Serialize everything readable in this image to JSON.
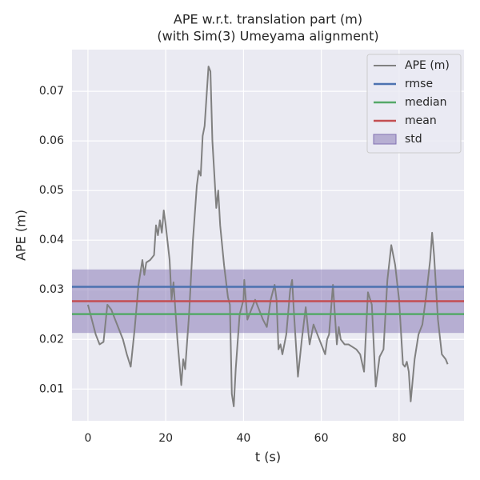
{
  "chart_data": {
    "type": "line",
    "title": "APE w.r.t. translation part (m)",
    "subtitle": "(with Sim(3) Umeyama alignment)",
    "x_label": "t (s)",
    "y_label": "APE (m)",
    "xlim": [
      -4.1,
      96.7
    ],
    "ylim": [
      0.0036,
      0.0784
    ],
    "xticks": [
      0,
      20,
      40,
      60,
      80
    ],
    "yticks": [
      0.01,
      0.02,
      0.03,
      0.04,
      0.05,
      0.06,
      0.07
    ],
    "grid": true,
    "legend": "upper right",
    "series": [
      {
        "name": "APE (m)",
        "color": "#808080",
        "x": [
          0,
          1,
          2,
          3,
          4,
          5,
          6,
          7,
          8,
          9,
          10,
          11,
          12,
          13,
          14,
          14.5,
          15,
          16,
          17,
          17.5,
          18,
          18.5,
          19,
          19.5,
          20,
          21,
          21.5,
          22,
          23,
          24,
          24.5,
          25,
          26,
          27,
          28,
          28.5,
          29,
          29.5,
          30,
          31,
          31.5,
          32,
          33,
          33.5,
          34,
          35,
          36,
          36.5,
          37,
          37.5,
          38,
          39,
          40,
          40.2,
          41,
          42,
          43,
          44,
          45,
          46,
          47,
          48,
          48.5,
          49,
          49.5,
          50,
          51,
          52,
          52.5,
          53,
          54,
          55,
          56,
          57,
          58,
          59,
          60,
          61,
          61.5,
          62,
          63,
          64,
          64.5,
          65,
          66,
          67,
          68,
          69,
          70,
          71,
          72,
          73,
          74,
          75,
          76,
          77,
          78,
          79,
          80,
          81,
          81.5,
          82,
          82.5,
          83,
          84,
          85,
          86,
          87,
          88,
          88.5,
          89,
          90,
          91,
          92,
          92.5
        ],
        "values": [
          0.027,
          0.024,
          0.021,
          0.019,
          0.0195,
          0.027,
          0.026,
          0.024,
          0.022,
          0.02,
          0.017,
          0.0145,
          0.022,
          0.031,
          0.036,
          0.033,
          0.0355,
          0.036,
          0.037,
          0.043,
          0.041,
          0.044,
          0.0415,
          0.046,
          0.043,
          0.036,
          0.028,
          0.0315,
          0.02,
          0.0108,
          0.016,
          0.014,
          0.025,
          0.04,
          0.051,
          0.054,
          0.053,
          0.061,
          0.063,
          0.075,
          0.074,
          0.06,
          0.0465,
          0.05,
          0.043,
          0.035,
          0.0285,
          0.027,
          0.009,
          0.0065,
          0.014,
          0.025,
          0.028,
          0.032,
          0.024,
          0.026,
          0.028,
          0.026,
          0.024,
          0.0225,
          0.028,
          0.031,
          0.028,
          0.018,
          0.019,
          0.017,
          0.021,
          0.03,
          0.032,
          0.025,
          0.0125,
          0.02,
          0.0265,
          0.019,
          0.023,
          0.021,
          0.019,
          0.017,
          0.02,
          0.021,
          0.031,
          0.019,
          0.0225,
          0.02,
          0.019,
          0.019,
          0.0185,
          0.018,
          0.017,
          0.0135,
          0.0295,
          0.027,
          0.0105,
          0.0165,
          0.018,
          0.032,
          0.039,
          0.035,
          0.028,
          0.015,
          0.0145,
          0.0155,
          0.0135,
          0.0075,
          0.016,
          0.021,
          0.023,
          0.029,
          0.036,
          0.0415,
          0.037,
          0.024,
          0.017,
          0.016,
          0.015
        ]
      }
    ],
    "stats": [
      {
        "name": "rmse",
        "color": "#4c72b0",
        "value": 0.0306
      },
      {
        "name": "median",
        "color": "#55a868",
        "value": 0.0251
      },
      {
        "name": "mean",
        "color": "#c44e52",
        "value": 0.0277
      }
    ],
    "std": {
      "name": "std",
      "color": "#8172b2",
      "value": 0.0064
    }
  }
}
